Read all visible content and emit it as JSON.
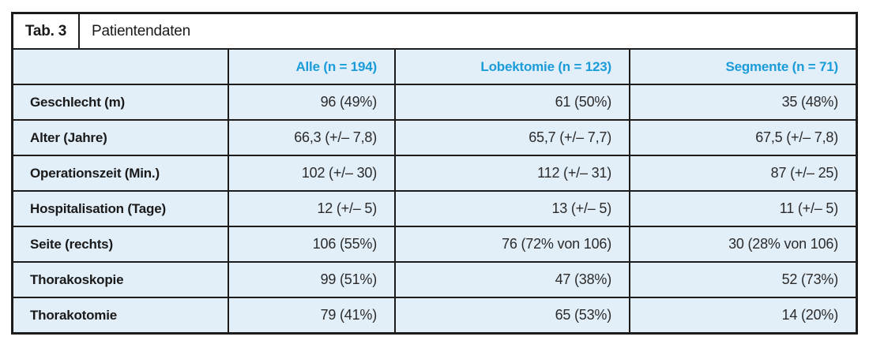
{
  "title_bar": {
    "tab_label": "Tab. 3",
    "title": "Patientendaten"
  },
  "colors": {
    "accent_blue": "#1a9cd9",
    "row_background": "#e2eef8",
    "border": "#1c1c1c"
  },
  "table": {
    "column_headers": [
      "",
      "Alle (n = 194)",
      "Lobektomie (n = 123)",
      "Segmente (n = 71)"
    ],
    "rows": [
      {
        "label": "Geschlecht (m)",
        "values": [
          "96 (49%)",
          "61 (50%)",
          "35 (48%)"
        ]
      },
      {
        "label": "Alter (Jahre)",
        "values": [
          "66,3 (+/– 7,8)",
          "65,7 (+/– 7,7)",
          "67,5 (+/– 7,8)"
        ]
      },
      {
        "label": "Operationszeit (Min.)",
        "values": [
          "102 (+/– 30)",
          "112 (+/– 31)",
          "87 (+/– 25)"
        ]
      },
      {
        "label": "Hospitalisation (Tage)",
        "values": [
          "12 (+/– 5)",
          "13 (+/– 5)",
          "11 (+/– 5)"
        ]
      },
      {
        "label": "Seite (rechts)",
        "values": [
          "106 (55%)",
          "76 (72% von 106)",
          "30 (28% von 106)"
        ]
      },
      {
        "label": "Thorakoskopie",
        "values": [
          "99 (51%)",
          "47 (38%)",
          "52 (73%)"
        ]
      },
      {
        "label": "Thorakotomie",
        "values": [
          "79 (41%)",
          "65 (53%)",
          "14 (20%)"
        ]
      }
    ]
  },
  "chart_data": {
    "type": "table",
    "title": "Tab. 3 Patientendaten",
    "columns": [
      "Alle (n = 194)",
      "Lobektomie (n = 123)",
      "Segmente (n = 71)"
    ],
    "row_labels": [
      "Geschlecht (m)",
      "Alter (Jahre)",
      "Operationszeit (Min.)",
      "Hospitalisation (Tage)",
      "Seite (rechts)",
      "Thorakoskopie",
      "Thorakotomie"
    ],
    "cells": [
      [
        "96 (49%)",
        "61 (50%)",
        "35 (48%)"
      ],
      [
        "66,3 (+/– 7,8)",
        "65,7 (+/– 7,7)",
        "67,5 (+/– 7,8)"
      ],
      [
        "102 (+/– 30)",
        "112 (+/– 31)",
        "87 (+/– 25)"
      ],
      [
        "12 (+/– 5)",
        "13 (+/– 5)",
        "11 (+/– 5)"
      ],
      [
        "106 (55%)",
        "76 (72% von 106)",
        "30 (28% von 106)"
      ],
      [
        "99 (51%)",
        "47 (38%)",
        "52 (73%)"
      ],
      [
        "79 (41%)",
        "65 (53%)",
        "14 (20%)"
      ]
    ]
  }
}
